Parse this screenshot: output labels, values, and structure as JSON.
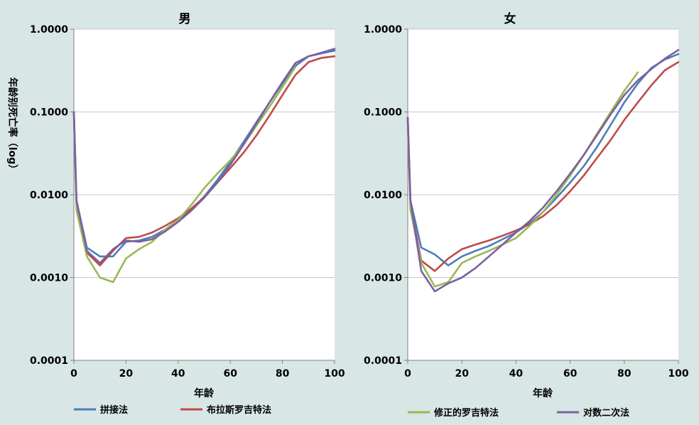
{
  "chart_data": [
    {
      "type": "line",
      "title": "男",
      "xlabel": "年龄",
      "ylabel": "年龄别死亡率（log）",
      "xlim": [
        0,
        100
      ],
      "ylim": [
        0.0001,
        1
      ],
      "yscale": "log",
      "xticks": [
        "0",
        "20",
        "40",
        "60",
        "80",
        "100"
      ],
      "yticks": [
        "0.0001",
        "0.0010",
        "0.0100",
        "0.1000",
        "1.0000"
      ],
      "grid": true,
      "series": [
        {
          "name": "拼接法",
          "color": "#4a7ebb",
          "x": [
            0,
            1,
            5,
            10,
            15,
            20,
            25,
            30,
            35,
            40,
            45,
            50,
            55,
            60,
            65,
            70,
            75,
            80,
            85,
            90,
            95,
            100
          ],
          "y": [
            0.1,
            0.0085,
            0.0023,
            0.0018,
            0.0018,
            0.0027,
            0.0028,
            0.0031,
            0.0038,
            0.0048,
            0.0066,
            0.0095,
            0.015,
            0.025,
            0.043,
            0.075,
            0.13,
            0.22,
            0.36,
            0.47,
            0.51,
            0.55
          ]
        },
        {
          "name": "布拉斯罗吉特法",
          "color": "#be4b48",
          "x": [
            0,
            1,
            5,
            10,
            15,
            20,
            25,
            30,
            35,
            40,
            45,
            50,
            55,
            60,
            65,
            70,
            75,
            80,
            85,
            90,
            95,
            100
          ],
          "y": [
            0.1,
            0.0075,
            0.002,
            0.0014,
            0.0021,
            0.003,
            0.0031,
            0.0035,
            0.0042,
            0.0052,
            0.0068,
            0.0093,
            0.014,
            0.021,
            0.032,
            0.052,
            0.09,
            0.16,
            0.28,
            0.4,
            0.45,
            0.47
          ]
        },
        {
          "name": "修正的罗吉特法",
          "color": "#98b954",
          "x": [
            0,
            1,
            5,
            10,
            15,
            20,
            25,
            30,
            35,
            40,
            45,
            50,
            55,
            60,
            65,
            70,
            75,
            80,
            85
          ],
          "y": [
            0.1,
            0.0065,
            0.0018,
            0.001,
            0.00088,
            0.0017,
            0.0022,
            0.0027,
            0.0038,
            0.005,
            0.0075,
            0.012,
            0.018,
            0.026,
            0.04,
            0.068,
            0.115,
            0.2,
            0.35
          ]
        },
        {
          "name": "对数二次法",
          "color": "#7d60a0",
          "x": [
            0,
            1,
            5,
            10,
            15,
            20,
            25,
            30,
            35,
            40,
            45,
            50,
            55,
            60,
            65,
            70,
            75,
            80,
            85,
            90,
            95,
            100
          ],
          "y": [
            0.1,
            0.0085,
            0.0021,
            0.0015,
            0.0022,
            0.0028,
            0.0027,
            0.0029,
            0.0036,
            0.0047,
            0.0064,
            0.0092,
            0.014,
            0.023,
            0.04,
            0.072,
            0.13,
            0.23,
            0.39,
            0.47,
            0.52,
            0.58
          ]
        }
      ]
    },
    {
      "type": "line",
      "title": "女",
      "xlabel": "年龄",
      "xlim": [
        0,
        100
      ],
      "ylim": [
        0.0001,
        1
      ],
      "yscale": "log",
      "xticks": [
        "0",
        "20",
        "40",
        "60",
        "80",
        "100"
      ],
      "yticks": [
        "0.0001",
        "0.0010",
        "0.0100",
        "0.1000",
        "1.0000"
      ],
      "grid": true,
      "series": [
        {
          "name": "拼接法",
          "color": "#4a7ebb",
          "x": [
            0,
            1,
            5,
            10,
            15,
            20,
            25,
            30,
            35,
            40,
            45,
            50,
            55,
            60,
            65,
            70,
            75,
            80,
            85,
            90,
            95,
            100
          ],
          "y": [
            0.085,
            0.0085,
            0.0023,
            0.0019,
            0.0014,
            0.0018,
            0.0021,
            0.0024,
            0.0029,
            0.0035,
            0.0045,
            0.0062,
            0.0092,
            0.014,
            0.022,
            0.038,
            0.07,
            0.13,
            0.22,
            0.34,
            0.43,
            0.5
          ]
        },
        {
          "name": "布拉斯罗吉特法",
          "color": "#be4b48",
          "x": [
            0,
            1,
            5,
            10,
            15,
            20,
            25,
            30,
            35,
            40,
            45,
            50,
            55,
            60,
            65,
            70,
            75,
            80,
            85,
            90,
            95,
            100
          ],
          "y": [
            0.08,
            0.0075,
            0.0016,
            0.0012,
            0.0017,
            0.0022,
            0.0025,
            0.0028,
            0.0032,
            0.0037,
            0.0044,
            0.0055,
            0.0075,
            0.011,
            0.017,
            0.028,
            0.046,
            0.08,
            0.13,
            0.21,
            0.32,
            0.4
          ]
        },
        {
          "name": "修正的罗吉特法",
          "color": "#98b954",
          "x": [
            0,
            1,
            5,
            10,
            15,
            20,
            25,
            30,
            35,
            40,
            45,
            50,
            55,
            60,
            65,
            70,
            75,
            80,
            85
          ],
          "y": [
            0.08,
            0.0065,
            0.0015,
            0.00078,
            0.00088,
            0.0015,
            0.0018,
            0.0021,
            0.0025,
            0.003,
            0.0042,
            0.0062,
            0.01,
            0.017,
            0.03,
            0.055,
            0.1,
            0.18,
            0.3
          ]
        },
        {
          "name": "对数二次法",
          "color": "#7d60a0",
          "x": [
            0,
            1,
            5,
            10,
            15,
            20,
            25,
            30,
            35,
            40,
            45,
            50,
            55,
            60,
            65,
            70,
            75,
            80,
            85,
            90,
            95,
            100
          ],
          "y": [
            0.085,
            0.0085,
            0.0012,
            0.00068,
            0.00085,
            0.001,
            0.0013,
            0.0018,
            0.0025,
            0.0035,
            0.0048,
            0.007,
            0.011,
            0.018,
            0.03,
            0.053,
            0.094,
            0.16,
            0.24,
            0.33,
            0.44,
            0.56
          ]
        }
      ]
    }
  ],
  "legend": {
    "row1": [
      "拼接法",
      "布拉斯罗吉特法"
    ],
    "row2": [
      "修正的罗吉特法",
      "对数二次法"
    ]
  }
}
